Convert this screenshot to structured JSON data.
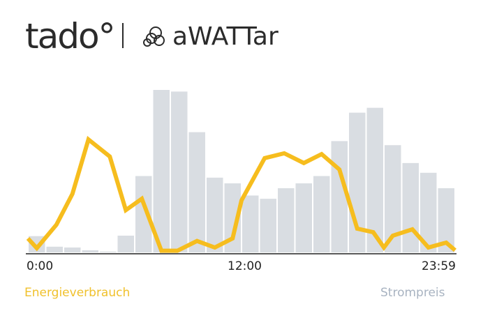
{
  "header": {
    "logo_left": "tado°",
    "logo_right": "aWATTar"
  },
  "colors": {
    "energy": "#F6BD1E",
    "price": "#D9DDE2",
    "energy_label": "#F0C12C",
    "price_label": "#A8B3C1",
    "axis": "#222222"
  },
  "chart_data": {
    "type": "bar+line",
    "xlabel": "",
    "ylabel": "",
    "x_tick_labels": [
      "0:00",
      "12:00",
      "23:59"
    ],
    "xlim": [
      0,
      24
    ],
    "ylim": [
      0,
      100
    ],
    "grid": false,
    "legend_placement": "bottom",
    "series": [
      {
        "name": "Strompreis",
        "type": "bar",
        "hours": [
          0,
          1,
          2,
          3,
          4,
          5,
          6,
          7,
          8,
          9,
          10,
          11,
          12,
          13,
          14,
          15,
          16,
          17,
          18,
          19,
          20,
          21,
          22,
          23
        ],
        "values": [
          10,
          3.5,
          3,
          1.3,
          0.5,
          10.3,
          47,
          100,
          99,
          74,
          46,
          42.5,
          35,
          33,
          39.5,
          42.5,
          47,
          68.5,
          86,
          89,
          66,
          55,
          49,
          39.5
        ]
      },
      {
        "name": "Energieverbrauch",
        "type": "line",
        "points": [
          [
            0,
            8.6
          ],
          [
            0.5,
            2.6
          ],
          [
            1.6,
            17
          ],
          [
            2.5,
            36
          ],
          [
            3.4,
            69.5
          ],
          [
            4.6,
            59
          ],
          [
            5.5,
            26
          ],
          [
            6.4,
            33
          ],
          [
            7.5,
            1
          ],
          [
            8.4,
            1
          ],
          [
            9.5,
            7
          ],
          [
            10.5,
            3
          ],
          [
            11.5,
            8.6
          ],
          [
            12,
            32
          ],
          [
            13.3,
            58
          ],
          [
            14.4,
            61
          ],
          [
            15.5,
            55
          ],
          [
            16.5,
            60.5
          ],
          [
            17.5,
            51
          ],
          [
            18.5,
            14.6
          ],
          [
            19.4,
            12.4
          ],
          [
            20,
            3
          ],
          [
            20.5,
            10.3
          ],
          [
            21.6,
            14.2
          ],
          [
            22.5,
            3
          ],
          [
            23.5,
            6
          ],
          [
            24,
            1.3
          ]
        ]
      }
    ]
  },
  "legend": {
    "energy": "Energieverbrauch",
    "price": "Strompreis"
  }
}
